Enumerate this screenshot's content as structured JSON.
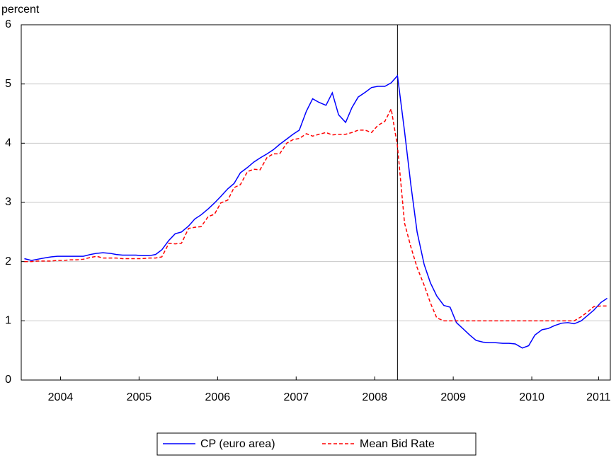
{
  "chart_data": {
    "type": "line",
    "y_label": "percent",
    "x": [
      2004.04,
      2004.13,
      2004.21,
      2004.29,
      2004.38,
      2004.46,
      2004.54,
      2004.63,
      2004.71,
      2004.79,
      2004.88,
      2004.96,
      2005.04,
      2005.13,
      2005.21,
      2005.29,
      2005.38,
      2005.46,
      2005.54,
      2005.63,
      2005.71,
      2005.79,
      2005.88,
      2005.96,
      2006.04,
      2006.13,
      2006.21,
      2006.29,
      2006.38,
      2006.46,
      2006.54,
      2006.63,
      2006.71,
      2006.79,
      2006.88,
      2006.96,
      2007.04,
      2007.13,
      2007.21,
      2007.29,
      2007.38,
      2007.46,
      2007.54,
      2007.63,
      2007.71,
      2007.79,
      2007.88,
      2007.96,
      2008.04,
      2008.13,
      2008.21,
      2008.29,
      2008.38,
      2008.46,
      2008.54,
      2008.63,
      2008.71,
      2008.79,
      2008.88,
      2008.96,
      2009.04,
      2009.13,
      2009.21,
      2009.29,
      2009.38,
      2009.46,
      2009.54,
      2009.63,
      2009.71,
      2009.79,
      2009.88,
      2009.96,
      2010.04,
      2010.13,
      2010.21,
      2010.29,
      2010.38,
      2010.46,
      2010.54,
      2010.63,
      2010.71,
      2010.79,
      2010.88,
      2010.96,
      2011.04,
      2011.13,
      2011.21,
      2011.29,
      2011.38,
      2011.46
    ],
    "series": [
      {
        "name": "CP (euro area)",
        "color": "#0000ff",
        "dash": false,
        "values": [
          2.05,
          2.02,
          2.04,
          2.06,
          2.08,
          2.09,
          2.09,
          2.09,
          2.09,
          2.09,
          2.12,
          2.14,
          2.15,
          2.14,
          2.12,
          2.11,
          2.11,
          2.11,
          2.1,
          2.1,
          2.12,
          2.2,
          2.36,
          2.47,
          2.5,
          2.6,
          2.72,
          2.79,
          2.89,
          2.99,
          3.1,
          3.23,
          3.32,
          3.5,
          3.59,
          3.68,
          3.75,
          3.82,
          3.89,
          3.98,
          4.07,
          4.15,
          4.22,
          4.54,
          4.75,
          4.69,
          4.64,
          4.85,
          4.48,
          4.35,
          4.6,
          4.78,
          4.86,
          4.94,
          4.96,
          4.96,
          5.02,
          5.14,
          4.2,
          3.3,
          2.5,
          1.95,
          1.64,
          1.42,
          1.26,
          1.23,
          0.97,
          0.86,
          0.76,
          0.67,
          0.64,
          0.63,
          0.63,
          0.62,
          0.62,
          0.61,
          0.54,
          0.58,
          0.76,
          0.85,
          0.87,
          0.92,
          0.96,
          0.97,
          0.95,
          1.0,
          1.09,
          1.18,
          1.31,
          1.38
        ]
      },
      {
        "name": "Mean Bid Rate",
        "color": "#ff0000",
        "dash": true,
        "values": [
          2.0,
          2.0,
          2.01,
          2.01,
          2.01,
          2.02,
          2.02,
          2.03,
          2.03,
          2.04,
          2.07,
          2.09,
          2.06,
          2.06,
          2.06,
          2.05,
          2.05,
          2.05,
          2.05,
          2.06,
          2.06,
          2.08,
          2.31,
          2.3,
          2.31,
          2.56,
          2.58,
          2.59,
          2.76,
          2.8,
          2.99,
          3.04,
          3.25,
          3.3,
          3.52,
          3.56,
          3.55,
          3.76,
          3.82,
          3.82,
          4.0,
          4.06,
          4.08,
          4.16,
          4.12,
          4.15,
          4.18,
          4.14,
          4.15,
          4.15,
          4.18,
          4.22,
          4.22,
          4.18,
          4.3,
          4.37,
          4.58,
          3.95,
          2.65,
          2.25,
          1.9,
          1.6,
          1.3,
          1.05,
          1.0,
          1.0,
          1.0,
          1.0,
          1.0,
          1.0,
          1.0,
          1.0,
          1.0,
          1.0,
          1.0,
          1.0,
          1.0,
          1.0,
          1.0,
          1.0,
          1.0,
          1.0,
          1.0,
          1.0,
          1.0,
          1.07,
          1.15,
          1.24,
          1.25,
          1.25
        ]
      }
    ],
    "xlim": [
      2004.0,
      2011.5
    ],
    "xticks": [
      {
        "value": 2004.5,
        "label": "2004"
      },
      {
        "value": 2005.5,
        "label": "2005"
      },
      {
        "value": 2006.5,
        "label": "2006"
      },
      {
        "value": 2007.5,
        "label": "2007"
      },
      {
        "value": 2008.5,
        "label": "2008"
      },
      {
        "value": 2009.5,
        "label": "2009"
      },
      {
        "value": 2010.5,
        "label": "2010"
      },
      {
        "value": 2011.35,
        "label": "2011"
      }
    ],
    "ylim": [
      0,
      6
    ],
    "yticks": [
      0,
      1,
      2,
      3,
      4,
      5,
      6
    ],
    "grid": true,
    "vline": 2008.79,
    "legend": "bottom"
  }
}
